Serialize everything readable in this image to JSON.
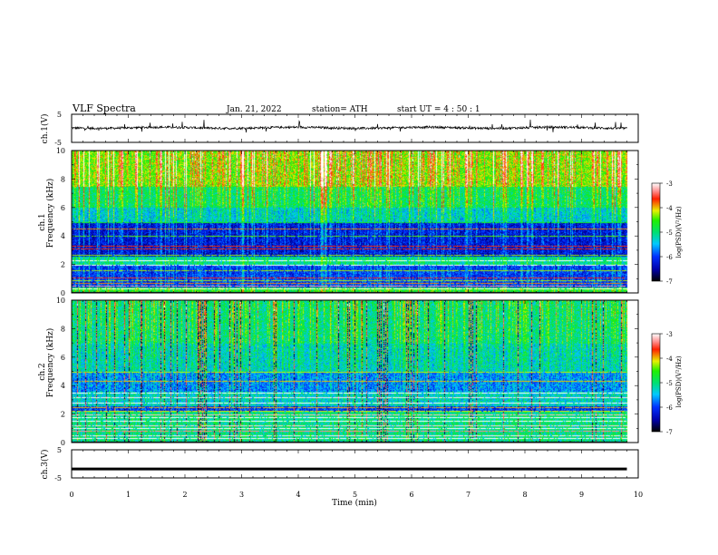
{
  "header": {
    "title": "VLF  Spectra",
    "date": "Jan. 21, 2022",
    "station": "station= ATH",
    "start": "start  UT  =   4  : 50 : 1"
  },
  "chart_data": [
    {
      "type": "line",
      "panel": "ch1-waveform",
      "ylabel": "ch.1(V)",
      "ylim": [
        -5,
        5
      ],
      "yticks": [
        "5",
        "-5"
      ],
      "xlim": [
        0,
        10
      ],
      "series": [
        {
          "x": [
            0,
            9.8
          ],
          "y": [
            0.2,
            0.2
          ]
        }
      ]
    },
    {
      "type": "heatmap",
      "panel": "ch1-spectrogram",
      "ylabel_line1": "ch.1",
      "ylabel_line2": "Frequency  (kHz)",
      "ylim": [
        0,
        10
      ],
      "yticks": [
        "0",
        "2",
        "4",
        "6",
        "8",
        "10"
      ],
      "xlim": [
        0,
        10
      ],
      "data_end_min": 9.8,
      "colorbar": {
        "label": "log(PSD)(V²/Hz)",
        "range": [
          -7,
          -3
        ],
        "ticks": [
          "-3",
          "-4",
          "-5",
          "-6",
          "-7"
        ]
      }
    },
    {
      "type": "heatmap",
      "panel": "ch2-spectrogram",
      "ylabel_line1": "ch.2",
      "ylabel_line2": "Frequency  (kHz)",
      "ylim": [
        0,
        10
      ],
      "yticks": [
        "0",
        "2",
        "4",
        "6",
        "8",
        "10"
      ],
      "xlim": [
        0,
        10
      ],
      "data_end_min": 9.8,
      "colorbar": {
        "label": "log(PSD)(V²/Hz)",
        "range": [
          -7,
          -3
        ],
        "ticks": [
          "-3",
          "-4",
          "-5",
          "-6",
          "-7"
        ]
      }
    },
    {
      "type": "line",
      "panel": "ch3-waveform",
      "ylabel": "ch.3(V)",
      "ylim": [
        -5,
        5
      ],
      "yticks": [
        "5",
        "-5"
      ],
      "xlim": [
        0,
        10
      ],
      "xlabel": "Time  (min)",
      "xticks": [
        "0",
        "1",
        "2",
        "3",
        "4",
        "5",
        "6",
        "7",
        "8",
        "9",
        "10"
      ],
      "series": [
        {
          "x": [
            0,
            9.8
          ],
          "y": [
            -1.8,
            -1.8
          ]
        }
      ]
    }
  ]
}
